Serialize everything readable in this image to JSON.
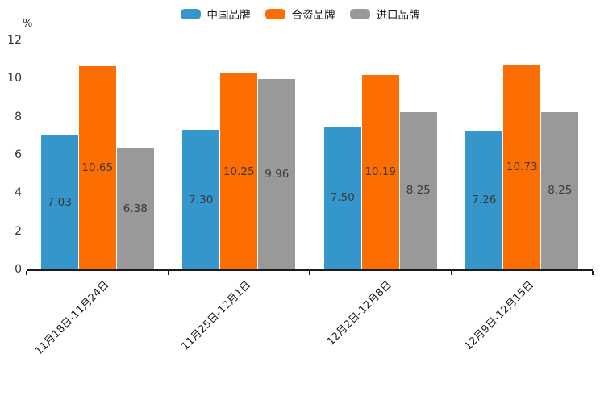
{
  "chart_data": {
    "type": "bar",
    "title": "",
    "unit_label": "%",
    "categories": [
      "11月18日-11月24日",
      "11月25日-12月1日",
      "12月2日-12月8日",
      "12月9日-12月15日"
    ],
    "series": [
      {
        "name": "中国品牌",
        "color": "#3496CA",
        "values": [
          7.03,
          7.3,
          7.5,
          7.26
        ],
        "value_labels": [
          "7.03",
          "7.30",
          "7.50",
          "7.26"
        ]
      },
      {
        "name": "合资品牌",
        "color": "#FD6E02",
        "values": [
          10.65,
          10.25,
          10.19,
          10.73
        ],
        "value_labels": [
          "10.65",
          "10.25",
          "10.19",
          "10.73"
        ]
      },
      {
        "name": "进口品牌",
        "color": "#999999",
        "values": [
          6.38,
          9.96,
          8.25,
          8.25
        ],
        "value_labels": [
          "6.38",
          "9.96",
          "8.25",
          "8.25"
        ]
      }
    ],
    "ylim": [
      0,
      12
    ],
    "y_ticks": [
      "0",
      "2",
      "4",
      "6",
      "8",
      "10",
      "12"
    ],
    "grid": false,
    "legend_position": "top",
    "bar_value_label_color": "#3a3a3a",
    "axis_color": "#1a1a1a",
    "tick_label_color": "#333333"
  }
}
